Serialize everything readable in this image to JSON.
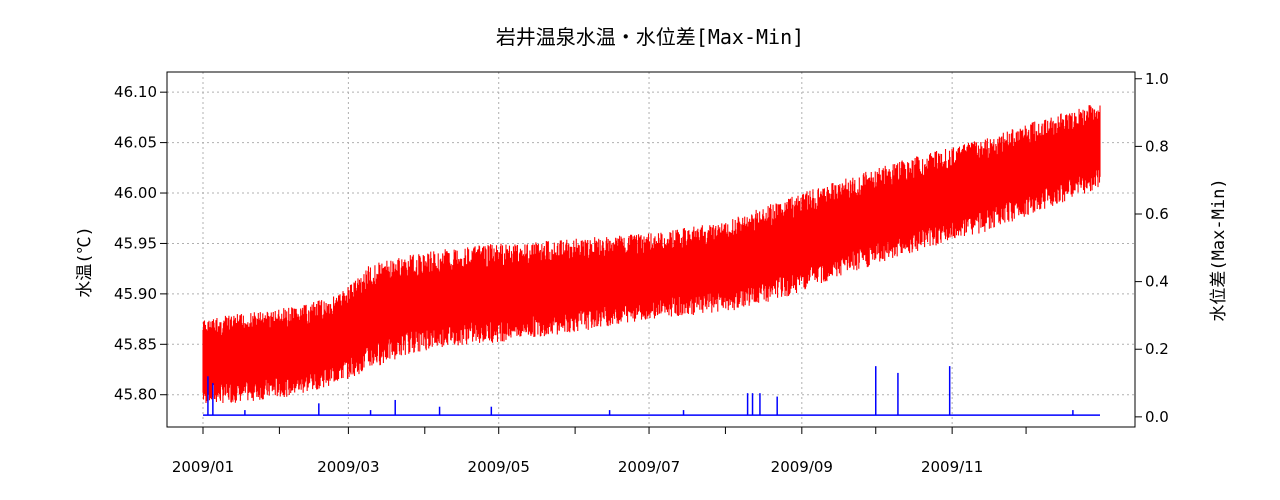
{
  "chart_data": {
    "type": "line",
    "title": "岩井温泉水温・水位差[Max-Min]",
    "ylabel_left": "水温(℃)",
    "ylabel_right": "水位差(Max-Min)",
    "grid": true,
    "x_start": "2009/01/01",
    "x_end": "2009/12/31",
    "x_ticks": [
      "2009/01",
      "2009/02",
      "2009/03",
      "2009/04",
      "2009/05",
      "2009/06",
      "2009/07",
      "2009/08",
      "2009/09",
      "2009/10",
      "2009/11",
      "2009/12"
    ],
    "x_tick_labels": [
      "2009/01",
      "",
      "2009/03",
      "",
      "2009/05",
      "",
      "2009/07",
      "",
      "2009/09",
      "",
      "2009/11",
      ""
    ],
    "y_left": {
      "ylim": [
        45.768,
        46.12
      ],
      "ticks": [
        "45.80",
        "45.85",
        "45.90",
        "45.95",
        "46.00",
        "46.05",
        "46.10"
      ]
    },
    "y_right": {
      "ylim": [
        -0.03,
        1.02
      ],
      "ticks": [
        "0.0",
        "0.2",
        "0.4",
        "0.6",
        "0.8",
        "1.0"
      ]
    },
    "series": [
      {
        "name": "水温",
        "axis": "left",
        "color": "#ff0000",
        "style": "band",
        "x": [
          "2009/01/01",
          "2009/01/20",
          "2009/02/10",
          "2009/02/25",
          "2009/03/10",
          "2009/03/25",
          "2009/04/10",
          "2009/05/01",
          "2009/06/01",
          "2009/07/01",
          "2009/08/01",
          "2009/08/20",
          "2009/09/15",
          "2009/10/15",
          "2009/11/15",
          "2009/12/15",
          "2009/12/31"
        ],
        "upper": [
          45.875,
          45.882,
          45.888,
          45.9,
          45.93,
          45.938,
          45.945,
          45.95,
          45.955,
          45.96,
          45.972,
          45.99,
          46.012,
          46.035,
          46.055,
          46.08,
          46.09
        ],
        "lower": [
          45.79,
          45.793,
          45.8,
          45.812,
          45.825,
          45.84,
          45.848,
          45.852,
          45.862,
          45.875,
          45.882,
          45.892,
          45.915,
          45.94,
          45.962,
          45.99,
          46.005
        ]
      },
      {
        "name": "水位差",
        "axis": "right",
        "color": "#0000ff",
        "style": "line",
        "baseline": 0.005,
        "spikes": [
          {
            "x": "2009/01/03",
            "y": 0.12
          },
          {
            "x": "2009/01/05",
            "y": 0.1
          },
          {
            "x": "2009/01/18",
            "y": 0.02
          },
          {
            "x": "2009/02/17",
            "y": 0.04
          },
          {
            "x": "2009/03/10",
            "y": 0.02
          },
          {
            "x": "2009/03/20",
            "y": 0.05
          },
          {
            "x": "2009/04/07",
            "y": 0.03
          },
          {
            "x": "2009/04/28",
            "y": 0.03
          },
          {
            "x": "2009/06/15",
            "y": 0.02
          },
          {
            "x": "2009/07/15",
            "y": 0.02
          },
          {
            "x": "2009/08/10",
            "y": 0.07
          },
          {
            "x": "2009/08/12",
            "y": 0.07
          },
          {
            "x": "2009/08/15",
            "y": 0.07
          },
          {
            "x": "2009/08/22",
            "y": 0.06
          },
          {
            "x": "2009/10/01",
            "y": 0.15
          },
          {
            "x": "2009/10/10",
            "y": 0.13
          },
          {
            "x": "2009/10/31",
            "y": 0.15
          },
          {
            "x": "2009/12/20",
            "y": 0.02
          }
        ]
      }
    ]
  }
}
